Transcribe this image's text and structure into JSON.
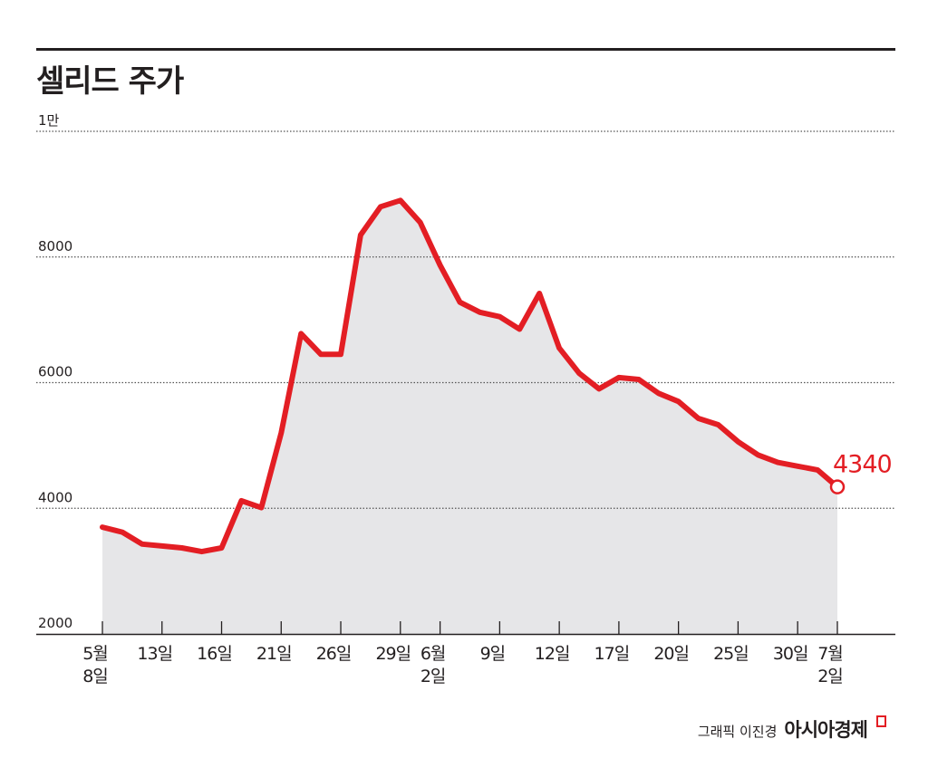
{
  "header": {
    "title": "셀리드 주가"
  },
  "footer": {
    "credit": "그래픽 이진경",
    "brand": "아시아경제"
  },
  "colors": {
    "line": "#e31e24",
    "area": "#e6e6e8",
    "text": "#231f20",
    "grid": "#555555"
  },
  "chart_data": {
    "type": "line",
    "title": "셀리드 주가",
    "ylim": [
      2000,
      10000
    ],
    "y_ticks": [
      {
        "value": 10000,
        "label": "1만"
      },
      {
        "value": 8000,
        "label": "8000"
      },
      {
        "value": 6000,
        "label": "6000"
      },
      {
        "value": 4000,
        "label": "4000"
      },
      {
        "value": 2000,
        "label": "2000"
      }
    ],
    "x_ticks": [
      {
        "index": 0,
        "lines": [
          "5월",
          "8일"
        ]
      },
      {
        "index": 3,
        "lines": [
          "13일"
        ]
      },
      {
        "index": 6,
        "lines": [
          "16일"
        ]
      },
      {
        "index": 9,
        "lines": [
          "21일"
        ]
      },
      {
        "index": 12,
        "lines": [
          "26일"
        ]
      },
      {
        "index": 15,
        "lines": [
          "29일"
        ]
      },
      {
        "index": 17,
        "lines": [
          "6월",
          "2일"
        ]
      },
      {
        "index": 20,
        "lines": [
          "9일"
        ]
      },
      {
        "index": 23,
        "lines": [
          "12일"
        ]
      },
      {
        "index": 26,
        "lines": [
          "17일"
        ]
      },
      {
        "index": 29,
        "lines": [
          "20일"
        ]
      },
      {
        "index": 32,
        "lines": [
          "25일"
        ]
      },
      {
        "index": 35,
        "lines": [
          "30일"
        ]
      },
      {
        "index": 37,
        "lines": [
          "7월",
          "2일"
        ]
      }
    ],
    "values": [
      3700,
      3620,
      3430,
      3400,
      3370,
      3310,
      3370,
      4120,
      4010,
      5200,
      6780,
      6450,
      6450,
      8350,
      8800,
      8900,
      8550,
      7870,
      7280,
      7120,
      7050,
      6850,
      7420,
      6550,
      6150,
      5900,
      6080,
      6050,
      5830,
      5700,
      5430,
      5330,
      5060,
      4850,
      4730,
      4670,
      4610,
      4340
    ],
    "last_label": "4340",
    "grid": true
  }
}
